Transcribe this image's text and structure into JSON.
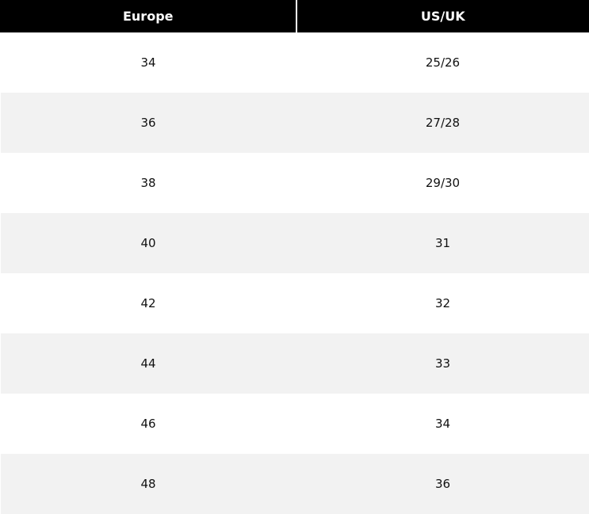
{
  "table": {
    "headers": [
      "Europe",
      "US/UK"
    ],
    "rows": [
      [
        "34",
        "25/26"
      ],
      [
        "36",
        "27/28"
      ],
      [
        "38",
        "29/30"
      ],
      [
        "40",
        "31"
      ],
      [
        "42",
        "32"
      ],
      [
        "44",
        "33"
      ],
      [
        "46",
        "34"
      ],
      [
        "48",
        "36"
      ]
    ]
  },
  "colors": {
    "header_background": "#000000",
    "header_text": "#ffffff",
    "row_odd": "#ffffff",
    "row_even": "#f2f2f2"
  }
}
